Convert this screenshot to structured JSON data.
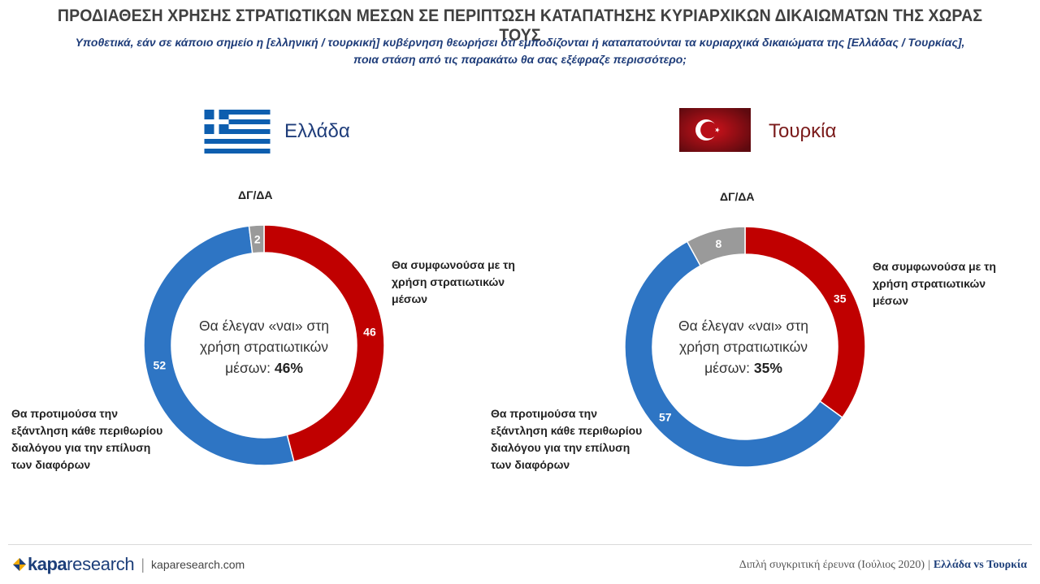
{
  "title": "ΠΡΟΔΙΑΘΕΣΗ ΧΡΗΣΗΣ ΣΤΡΑΤΙΩΤΙΚΩΝ ΜΕΣΩΝ ΣΕ ΠΕΡΙΠΤΩΣΗ ΚΑΤΑΠΑΤΗΣΗΣ ΚΥΡΙΑΡΧΙΚΩΝ ΔΙΚΑΙΩΜΑΤΩΝ ΤΗΣ ΧΩΡΑΣ ΤΟΥΣ",
  "subtitle_line1": "Υποθετικά, εάν σε κάποιο σημείο η [ελληνική / τουρκική] κυβέρνηση θεωρήσει ότι εμποδίζονται ή καταπατούνται τα κυριαρχικά δικαιώματα της [Ελλάδας / Τουρκίας],",
  "subtitle_line2": "ποια στάση από τις παρακάτω θα σας εξέφραζε περισσότερο;",
  "colors": {
    "agree": "#c00000",
    "dialogue": "#2e75c4",
    "dkna": "#9a9a9a",
    "title": "#404040",
    "subtitle": "#1f3d7a",
    "greece_text": "#1f3d7a",
    "turkey_text": "#7a1a1a"
  },
  "greece": {
    "country": "Ελλάδα",
    "flag_icon": "greece-flag-icon",
    "dgda_label": "ΔΓ/ΔΑ",
    "agree_label_lines": [
      "Θα συμφωνούσα με τη",
      "χρήση στρατιωτικών",
      "μέσων"
    ],
    "dialogue_label_lines": [
      "Θα προτιμούσα την",
      "εξάντληση κάθε περιθωρίου",
      "διαλόγου για την επίλυση",
      "των διαφόρων"
    ],
    "center_lines": [
      "Θα έλεγαν «ναι» στη",
      "χρήση στρατιωτικών"
    ],
    "center_prefix": "μέσων: ",
    "center_value": "46%"
  },
  "turkey": {
    "country": "Τουρκία",
    "flag_icon": "turkey-flag-icon",
    "dgda_label": "ΔΓ/ΔΑ",
    "agree_label_lines": [
      "Θα συμφωνούσα με τη",
      "χρήση στρατιωτικών",
      "μέσων"
    ],
    "dialogue_label_lines": [
      "Θα προτιμούσα την",
      "εξάντληση κάθε περιθωρίου",
      "διαλόγου για την επίλυση",
      "των διαφόρων"
    ],
    "center_lines": [
      "Θα έλεγαν «ναι» στη",
      "χρήση στρατιωτικών"
    ],
    "center_prefix": "μέσων: ",
    "center_value": "35%"
  },
  "chart_data": [
    {
      "type": "pie",
      "donut": true,
      "chart": "Ελλάδα",
      "slices": [
        {
          "label": "Θα συμφωνούσα με τη χρήση στρατιωτικών μέσων",
          "value": 46,
          "color": "#c00000"
        },
        {
          "label": "Θα προτιμούσα την εξάντληση κάθε περιθωρίου διαλόγου για την επίλυση των διαφόρων",
          "value": 52,
          "color": "#2e75c4"
        },
        {
          "label": "ΔΓ/ΔΑ",
          "value": 2,
          "color": "#9a9a9a"
        }
      ]
    },
    {
      "type": "pie",
      "donut": true,
      "chart": "Τουρκία",
      "slices": [
        {
          "label": "Θα συμφωνούσα με τη χρήση στρατιωτικών μέσων",
          "value": 35,
          "color": "#c00000"
        },
        {
          "label": "Θα προτιμούσα την εξάντληση κάθε περιθωρίου διαλόγου για την επίλυση των διαφόρων",
          "value": 57,
          "color": "#2e75c4"
        },
        {
          "label": "ΔΓ/ΔΑ",
          "value": 8,
          "color": "#9a9a9a"
        }
      ]
    }
  ],
  "footer": {
    "logo_kapa": "kapa",
    "logo_research": "research",
    "separator": "|",
    "url": "kaparesearch.com",
    "survey_text": "Διπλή συγκριτική έρευνα (Ιούλιος 2020)",
    "survey_sep": "|",
    "comparison": "Ελλάδα vs Τουρκία"
  }
}
